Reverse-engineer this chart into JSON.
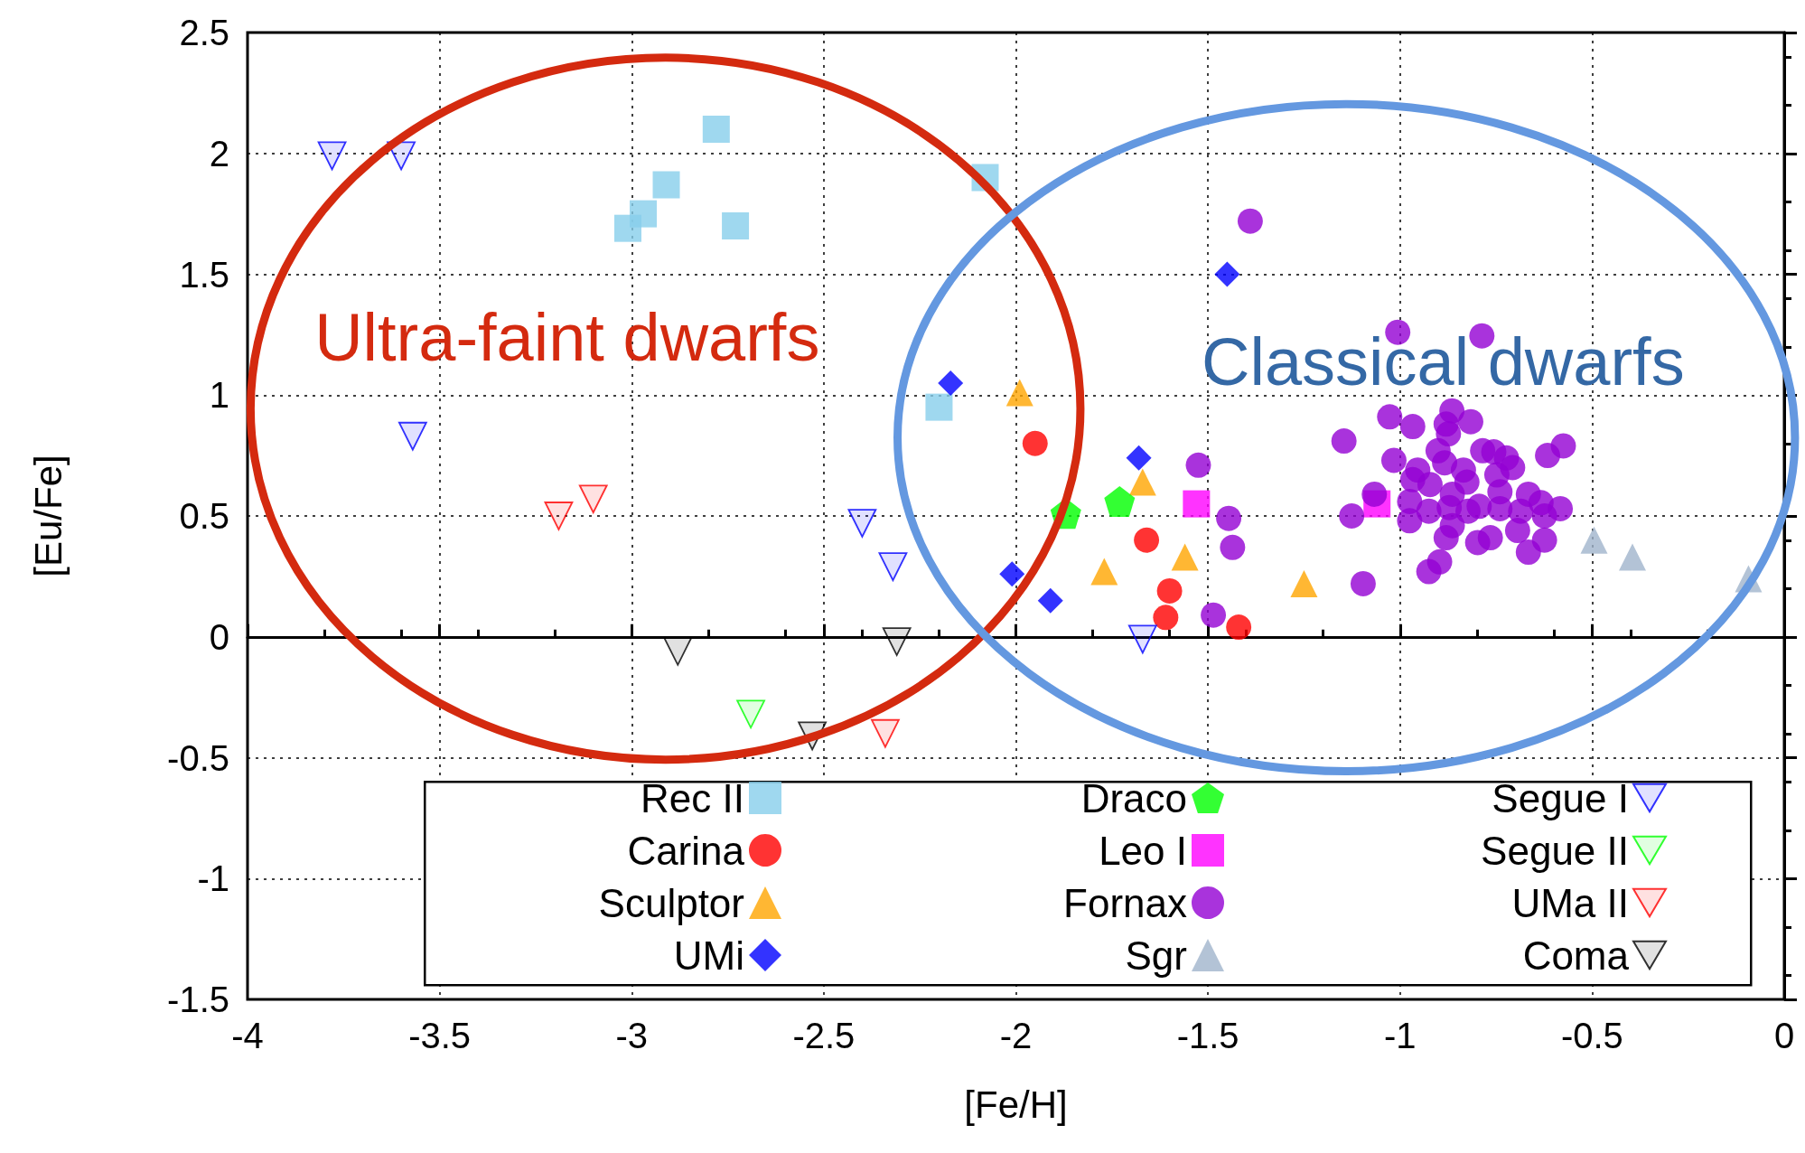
{
  "chart_data": {
    "type": "scatter",
    "xlabel": "[Fe/H]",
    "ylabel": "[Eu/Fe]",
    "xlim": [
      -4,
      0
    ],
    "xticks": [
      -4,
      -3.5,
      -3,
      -2.5,
      -2,
      -1.5,
      -1,
      -0.5,
      0
    ],
    "ylim": [
      -1.5,
      2.5
    ],
    "yticks": [
      -1.5,
      -1,
      -0.5,
      0,
      0.5,
      1,
      1.5,
      2,
      2.5
    ],
    "grid": true,
    "legend": "bottom",
    "annotations": [
      "Ultra-faint dwarfs",
      "Classical dwarfs"
    ],
    "series": [
      {
        "name": "Rec II",
        "color": "#87ceeb",
        "marker": "square",
        "x": [
          -2.78,
          -2.91,
          -2.97,
          -3.01,
          -2.73,
          -2.08,
          -2.2
        ],
        "values": [
          2.1,
          1.87,
          1.75,
          1.69,
          1.7,
          1.9,
          0.95
        ]
      },
      {
        "name": "Carina",
        "color": "#ff0000",
        "marker": "circle",
        "x": [
          -1.95,
          -1.66,
          -1.6,
          -1.61,
          -1.42
        ],
        "values": [
          0.8,
          0.4,
          0.19,
          0.08,
          0.04
        ]
      },
      {
        "name": "Sculptor",
        "color": "#ffa500",
        "marker": "triangle",
        "x": [
          -1.99,
          -1.67,
          -1.77,
          -1.56,
          -1.25
        ],
        "values": [
          1.01,
          0.64,
          0.27,
          0.33,
          0.22
        ]
      },
      {
        "name": "UMi",
        "color": "#0000ff",
        "marker": "diamond",
        "x": [
          -2.17,
          -1.45,
          -1.68,
          -2.01,
          -1.91
        ],
        "values": [
          1.05,
          1.5,
          0.74,
          0.26,
          0.15
        ]
      },
      {
        "name": "Draco",
        "color": "#00ff00",
        "x": [
          -1.87,
          -1.73
        ],
        "values": [
          0.51,
          0.56
        ]
      },
      {
        "name": "Leo I",
        "color": "#ff00ff",
        "marker": "square",
        "x": [
          -1.53,
          -1.06
        ],
        "values": [
          0.55,
          0.55
        ]
      },
      {
        "name": "Fornax",
        "color": "#9400d3",
        "marker": "circle",
        "x": [
          -1.39,
          -1.006,
          -0.787,
          -1.525,
          -1.446,
          -1.436,
          -1.486,
          -1.146,
          -1.126,
          -1.096,
          -1.067,
          -1.027,
          -0.967,
          -1.016,
          -0.865,
          -0.88,
          -0.816,
          -0.874,
          -0.901,
          -0.884,
          -0.785,
          -0.756,
          -0.723,
          -0.707,
          -0.616,
          -0.575,
          -0.835,
          -0.826,
          -0.954,
          -0.967,
          -0.922,
          -0.748,
          -0.74,
          -0.666,
          -0.633,
          -0.583,
          -0.624,
          -0.864,
          -0.872,
          -0.975,
          -0.975,
          -0.925,
          -0.823,
          -0.794,
          -0.74,
          -0.686,
          -0.864,
          -0.88,
          -0.798,
          -0.765,
          -0.694,
          -0.666,
          -0.624,
          -0.897,
          -0.925
        ],
        "values": [
          1.72,
          1.26,
          1.245,
          0.71,
          0.49,
          0.37,
          0.09,
          0.81,
          0.5,
          0.22,
          0.59,
          0.91,
          0.87,
          0.73,
          0.935,
          0.88,
          0.89,
          0.84,
          0.77,
          0.72,
          0.77,
          0.765,
          0.74,
          0.7,
          0.75,
          0.79,
          0.69,
          0.64,
          0.69,
          0.65,
          0.63,
          0.67,
          0.6,
          0.59,
          0.555,
          0.53,
          0.5,
          0.59,
          0.535,
          0.56,
          0.48,
          0.52,
          0.52,
          0.54,
          0.53,
          0.52,
          0.46,
          0.41,
          0.39,
          0.41,
          0.44,
          0.35,
          0.4,
          0.31,
          0.27
        ]
      },
      {
        "name": "Sgr",
        "color": "#a0b4cc",
        "marker": "triangle",
        "x": [
          -0.495,
          -0.395,
          -0.093
        ],
        "values": [
          0.4,
          0.33,
          0.24
        ]
      },
      {
        "name": "Segue I",
        "color": "#0000ff",
        "marker": "triangle-down-open",
        "x": [
          -3.78,
          -3.6,
          -3.57,
          -2.4,
          -2.32,
          -1.67
        ],
        "values": [
          1.99,
          1.99,
          0.83,
          0.47,
          0.29,
          -0.01
        ]
      },
      {
        "name": "Segue II",
        "color": "#00ff00",
        "marker": "triangle-down-open",
        "x": [
          -2.69
        ],
        "values": [
          -0.32
        ]
      },
      {
        "name": "UMa II",
        "color": "#ff0000",
        "marker": "triangle-down-open",
        "x": [
          -3.19,
          -3.1,
          -2.34
        ],
        "values": [
          0.5,
          0.57,
          -0.4
        ]
      },
      {
        "name": "Coma",
        "color": "#000000",
        "marker": "triangle-down-open",
        "x": [
          -2.88,
          -2.31,
          -2.53
        ],
        "values": [
          -0.06,
          -0.02,
          -0.41
        ]
      }
    ]
  }
}
